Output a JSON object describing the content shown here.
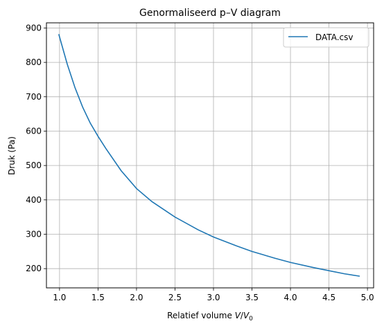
{
  "chart_data": {
    "type": "line",
    "title": "Genormaliseerd p–V diagram",
    "xlabel_prefix": "Relatief volume ",
    "xlabel_math_V": "V",
    "xlabel_math_slash": "/",
    "xlabel_math_V0": "V",
    "xlabel_math_sub": "0",
    "ylabel": "Druk (Pa)",
    "xlim": [
      0.83,
      5.08
    ],
    "ylim": [
      144,
      915
    ],
    "xticks": [
      1.0,
      1.5,
      2.0,
      2.5,
      3.0,
      3.5,
      4.0,
      4.5,
      5.0
    ],
    "xtick_labels": [
      "1.0",
      "1.5",
      "2.0",
      "2.5",
      "3.0",
      "3.5",
      "4.0",
      "4.5",
      "5.0"
    ],
    "yticks": [
      200,
      300,
      400,
      500,
      600,
      700,
      800,
      900
    ],
    "ytick_labels": [
      "200",
      "300",
      "400",
      "500",
      "600",
      "700",
      "800",
      "900"
    ],
    "grid": true,
    "legend": "top-right",
    "line_color": "#1f77b4",
    "series": [
      {
        "name": "DATA.csv",
        "x": [
          0.99,
          1.1,
          1.2,
          1.3,
          1.4,
          1.5,
          1.6,
          1.8,
          2.0,
          2.2,
          2.5,
          2.8,
          3.0,
          3.3,
          3.5,
          3.8,
          4.0,
          4.3,
          4.5,
          4.7,
          4.9
        ],
        "y": [
          882,
          795,
          727,
          670,
          623,
          585,
          550,
          485,
          433,
          395,
          350,
          313,
          292,
          266,
          250,
          230,
          218,
          203,
          194,
          185,
          178
        ]
      }
    ]
  }
}
